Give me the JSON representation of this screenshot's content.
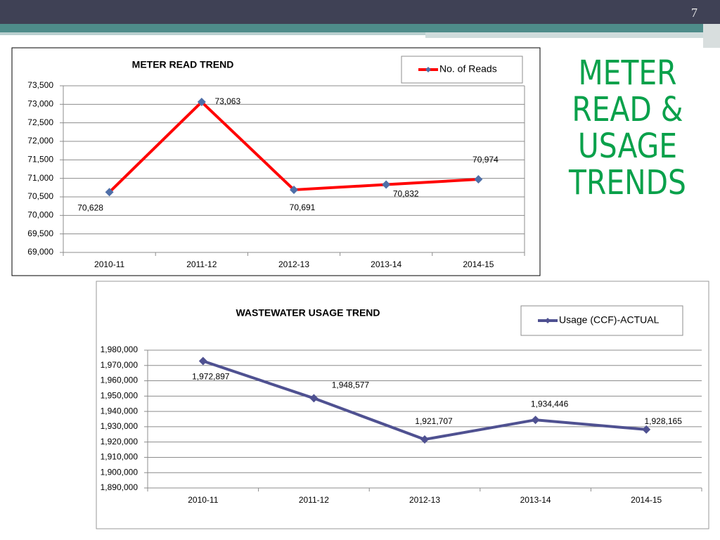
{
  "slide": {
    "title": "METER READ & USAGE TRENDS",
    "page_number": "7"
  },
  "chart_data": [
    {
      "type": "line",
      "title": "METER READ TREND",
      "categories": [
        "2010-11",
        "2011-12",
        "2012-13",
        "2013-14",
        "2014-15"
      ],
      "series": [
        {
          "name": "No. of Reads",
          "color": "#ff0000",
          "marker_color": "#4f6fa8",
          "values": [
            70628,
            73063,
            70691,
            70832,
            70974
          ],
          "value_labels": [
            "70,628",
            "73,063",
            "70,691",
            "70,832",
            "70,974"
          ]
        }
      ],
      "ylim": [
        69000,
        73500
      ],
      "yticks": [
        {
          "value": 69000,
          "label": "69,000"
        },
        {
          "value": 69500,
          "label": "69,500"
        },
        {
          "value": 70000,
          "label": "70,000"
        },
        {
          "value": 70500,
          "label": "70,500"
        },
        {
          "value": 71000,
          "label": "71,000"
        },
        {
          "value": 71500,
          "label": "71,500"
        },
        {
          "value": 72000,
          "label": "72,000"
        },
        {
          "value": 72500,
          "label": "72,500"
        },
        {
          "value": 73000,
          "label": "73,000"
        },
        {
          "value": 73500,
          "label": "73,500"
        }
      ],
      "grid": true,
      "legend": "top-right"
    },
    {
      "type": "line",
      "title": "WASTEWATER USAGE TREND",
      "categories": [
        "2010-11",
        "2011-12",
        "2012-13",
        "2013-14",
        "2014-15"
      ],
      "series": [
        {
          "name": "Usage (CCF)-ACTUAL",
          "color": "#4f5191",
          "marker_color": "#4f5191",
          "values": [
            1972897,
            1948577,
            1921707,
            1934446,
            1928165
          ],
          "value_labels": [
            "1,972,897",
            "1,948,577",
            "1,921,707",
            "1,934,446",
            "1,928,165"
          ]
        }
      ],
      "ylim": [
        1890000,
        1980000
      ],
      "yticks": [
        {
          "value": 1890000,
          "label": "1,890,000"
        },
        {
          "value": 1900000,
          "label": "1,900,000"
        },
        {
          "value": 1910000,
          "label": "1,910,000"
        },
        {
          "value": 1920000,
          "label": "1,920,000"
        },
        {
          "value": 1930000,
          "label": "1,930,000"
        },
        {
          "value": 1940000,
          "label": "1,940,000"
        },
        {
          "value": 1950000,
          "label": "1,950,000"
        },
        {
          "value": 1960000,
          "label": "1,960,000"
        },
        {
          "value": 1970000,
          "label": "1,970,000"
        },
        {
          "value": 1980000,
          "label": "1,980,000"
        }
      ],
      "grid": true,
      "legend": "top-right"
    }
  ]
}
